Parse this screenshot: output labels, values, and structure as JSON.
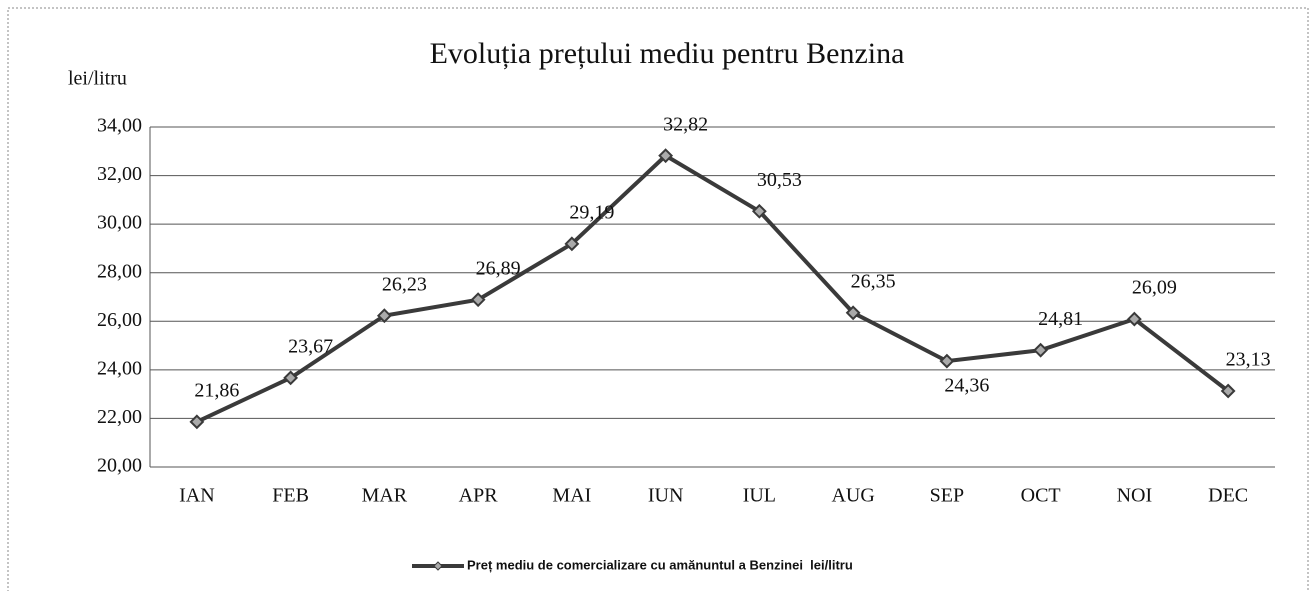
{
  "chart_data": {
    "type": "line",
    "title": "Evoluția prețului mediu pentru Benzina",
    "y_label": "lei/litru",
    "categories": [
      "IAN",
      "FEB",
      "MAR",
      "APR",
      "MAI",
      "IUN",
      "IUL",
      "AUG",
      "SEP",
      "OCT",
      "NOI",
      "DEC"
    ],
    "series": [
      {
        "name": "Preț mediu de comercializare cu amănuntul a Benzinei  lei/litru",
        "color": "#3a3a3a",
        "values": [
          21.86,
          23.67,
          26.23,
          26.89,
          29.19,
          32.82,
          30.53,
          26.35,
          24.36,
          24.81,
          26.09,
          23.13
        ],
        "value_labels": [
          "21,86",
          "23,67",
          "26,23",
          "26,89",
          "29,19",
          "32,82",
          "30,53",
          "26,35",
          "24,36",
          "24,81",
          "26,09",
          "23,13"
        ]
      }
    ],
    "ylim": [
      20,
      34
    ],
    "yticks": [
      {
        "value": 20,
        "label": "20,00"
      },
      {
        "value": 22,
        "label": "22,00"
      },
      {
        "value": 24,
        "label": "24,00"
      },
      {
        "value": 26,
        "label": "26,00"
      },
      {
        "value": 28,
        "label": "28,00"
      },
      {
        "value": 30,
        "label": "30,00"
      },
      {
        "value": 32,
        "label": "32,00"
      },
      {
        "value": 34,
        "label": "34,00"
      }
    ],
    "grid": true,
    "legend": "bottom"
  }
}
